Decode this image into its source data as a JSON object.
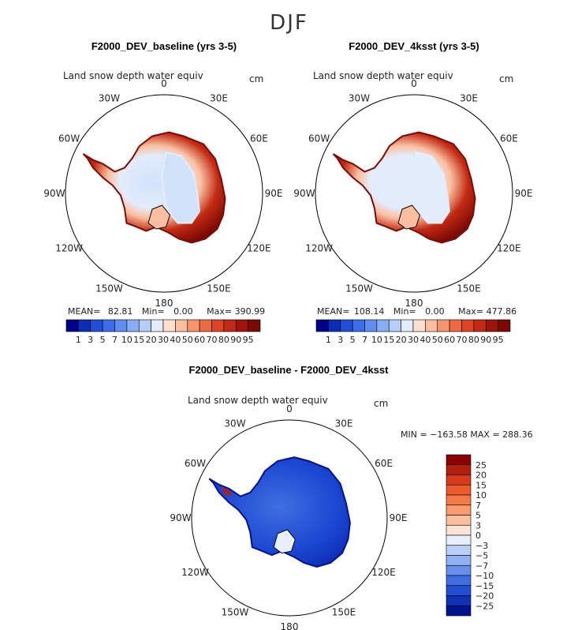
{
  "season": "DJF",
  "variable_label": "Land snow depth water equiv",
  "units": "cm",
  "longitude_labels": [
    "0",
    "30E",
    "60E",
    "90E",
    "120E",
    "150E",
    "180",
    "150W",
    "120W",
    "90W",
    "60W",
    "30W"
  ],
  "chart_data": [
    {
      "type": "heatmap",
      "title": "F2000_DEV_baseline (yrs 3-5)",
      "subtitle": "Land snow depth water equiv",
      "units": "cm",
      "projection": "south polar stereographic",
      "stats": {
        "mean_label": "MEAN=",
        "mean": "82.81",
        "min_label": "Min=",
        "min": "0.00",
        "max_label": "Max=",
        "max": "390.99"
      },
      "colorbar": {
        "orientation": "horizontal",
        "ticks": [
          "1",
          "3",
          "5",
          "7",
          "10",
          "15",
          "20",
          "30",
          "40",
          "50",
          "60",
          "70",
          "80",
          "90",
          "95"
        ],
        "colors": [
          "#00008b",
          "#0a2fb4",
          "#1f4fd8",
          "#3b6ee8",
          "#5f8ef0",
          "#87aef5",
          "#b5cdf9",
          "#e2ecfb",
          "#fde0cf",
          "#fbbfa0",
          "#f6946c",
          "#ee6a42",
          "#dd4424",
          "#c22a13",
          "#9e1508",
          "#7a0a03"
        ]
      },
      "interior_level": "#d3e2fb"
    },
    {
      "type": "heatmap",
      "title": "F2000_DEV_4ksst (yrs 3-5)",
      "subtitle": "Land snow depth water equiv",
      "units": "cm",
      "projection": "south polar stereographic",
      "stats": {
        "mean_label": "MEAN=",
        "mean": "108.14",
        "min_label": "Min=",
        "min": "0.00",
        "max_label": "Max=",
        "max": "477.86"
      },
      "colorbar": {
        "orientation": "horizontal",
        "ticks": [
          "1",
          "3",
          "5",
          "7",
          "10",
          "15",
          "20",
          "30",
          "40",
          "50",
          "60",
          "70",
          "80",
          "90",
          "95"
        ],
        "colors": [
          "#00008b",
          "#0a2fb4",
          "#1f4fd8",
          "#3b6ee8",
          "#5f8ef0",
          "#87aef5",
          "#b5cdf9",
          "#e2ecfb",
          "#fde0cf",
          "#fbbfa0",
          "#f6946c",
          "#ee6a42",
          "#dd4424",
          "#c22a13",
          "#9e1508",
          "#7a0a03"
        ]
      },
      "interior_level": "#e4edfb"
    },
    {
      "type": "heatmap",
      "title": "F2000_DEV_baseline - F2000_DEV_4ksst",
      "subtitle": "Land snow depth water equiv",
      "units": "cm",
      "projection": "south polar stereographic",
      "stats": {
        "text": "MIN = −163.58 MAX = 288.36"
      },
      "colorbar": {
        "orientation": "vertical",
        "ticks": [
          "25",
          "20",
          "15",
          "10",
          "7",
          "5",
          "3",
          "0",
          "−3",
          "−5",
          "−7",
          "−10",
          "−15",
          "−20",
          "−25"
        ],
        "colors": [
          "#8b0000",
          "#b51e0c",
          "#d63a1a",
          "#ee5a2c",
          "#f57a4a",
          "#f99b6e",
          "#fcbf9e",
          "#fde4d6",
          "#e6effb",
          "#b9cff7",
          "#8fb2f2",
          "#6690ea",
          "#3f6fe0",
          "#1f4fd3",
          "#0f31b8",
          "#00128f"
        ]
      },
      "interior_level": "#1a47d2"
    }
  ]
}
